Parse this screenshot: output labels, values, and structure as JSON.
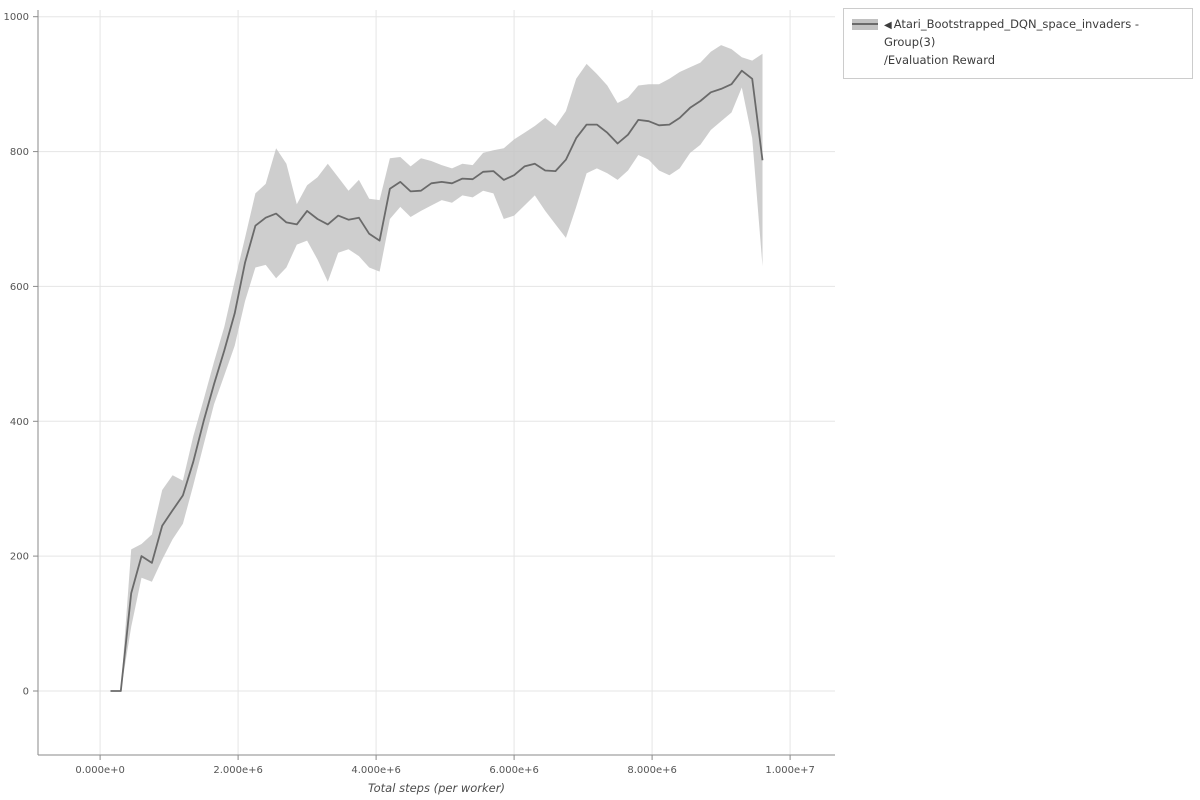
{
  "legend": {
    "marker": "◀",
    "line1": "Atari_Bootstrapped_DQN_space_invaders - Group(3)",
    "line2": "/Evaluation Reward"
  },
  "chart_data": {
    "type": "line",
    "title": "",
    "xlabel": "Total steps (per worker)",
    "ylabel": "",
    "grid": true,
    "legend_position": "top-right-outside",
    "xlim": [
      -900000,
      10650000
    ],
    "ylim": [
      -95,
      1010
    ],
    "x_ticks": [
      0,
      2000000,
      4000000,
      6000000,
      8000000,
      10000000
    ],
    "x_tick_labels": [
      "0.000e+0",
      "2.000e+6",
      "4.000e+6",
      "6.000e+6",
      "8.000e+6",
      "1.000e+7"
    ],
    "y_ticks": [
      0,
      200,
      400,
      600,
      800,
      1000
    ],
    "y_tick_labels": [
      "0",
      "200",
      "400",
      "600",
      "800",
      "1000"
    ],
    "series": [
      {
        "name": "Atari_Bootstrapped_DQN_space_invaders - Group(3)/Evaluation Reward",
        "x": [
          150000,
          300000,
          450000,
          600000,
          750000,
          900000,
          1050000,
          1200000,
          1350000,
          1500000,
          1650000,
          1800000,
          1950000,
          2100000,
          2250000,
          2400000,
          2550000,
          2700000,
          2850000,
          3000000,
          3150000,
          3300000,
          3450000,
          3600000,
          3750000,
          3900000,
          4050000,
          4200000,
          4350000,
          4500000,
          4650000,
          4800000,
          4950000,
          5100000,
          5250000,
          5400000,
          5550000,
          5700000,
          5850000,
          6000000,
          6150000,
          6300000,
          6450000,
          6600000,
          6750000,
          6900000,
          7050000,
          7200000,
          7350000,
          7500000,
          7650000,
          7800000,
          7950000,
          8100000,
          8250000,
          8400000,
          8550000,
          8700000,
          8850000,
          9000000,
          9150000,
          9300000,
          9450000,
          9600000
        ],
        "mean": [
          0,
          0,
          145,
          200,
          190,
          245,
          268,
          290,
          340,
          400,
          455,
          505,
          560,
          635,
          690,
          702,
          708,
          695,
          692,
          712,
          700,
          692,
          705,
          699,
          702,
          678,
          668,
          745,
          755,
          741,
          742,
          753,
          755,
          753,
          760,
          759,
          770,
          771,
          758,
          765,
          778,
          782,
          772,
          771,
          788,
          820,
          840,
          840,
          828,
          812,
          825,
          847,
          845,
          839,
          840,
          850,
          865,
          875,
          888,
          893,
          900,
          920,
          908,
          787
        ],
        "lower": [
          0,
          0,
          95,
          168,
          162,
          195,
          225,
          248,
          305,
          365,
          425,
          468,
          512,
          578,
          628,
          632,
          612,
          628,
          662,
          668,
          640,
          607,
          650,
          655,
          645,
          628,
          622,
          700,
          718,
          703,
          712,
          720,
          728,
          724,
          735,
          732,
          742,
          738,
          700,
          705,
          720,
          735,
          712,
          692,
          672,
          718,
          768,
          775,
          768,
          758,
          772,
          795,
          788,
          772,
          765,
          775,
          798,
          810,
          832,
          845,
          858,
          895,
          820,
          630
        ],
        "upper": [
          0,
          0,
          210,
          218,
          232,
          298,
          320,
          312,
          378,
          432,
          488,
          540,
          608,
          672,
          738,
          752,
          805,
          782,
          722,
          750,
          762,
          782,
          762,
          742,
          758,
          730,
          728,
          790,
          792,
          778,
          790,
          786,
          780,
          775,
          782,
          780,
          798,
          802,
          805,
          818,
          828,
          838,
          850,
          838,
          860,
          908,
          930,
          915,
          898,
          872,
          880,
          898,
          900,
          900,
          908,
          918,
          925,
          932,
          948,
          958,
          952,
          940,
          935,
          945
        ]
      }
    ],
    "colors": {
      "line": "#6a6a6a",
      "band": "#c6c6c6",
      "grid": "#e5e5e5",
      "axis": "#8a8a8a",
      "tick_label": "#555555",
      "axis_label": "#4d4d4d"
    }
  }
}
